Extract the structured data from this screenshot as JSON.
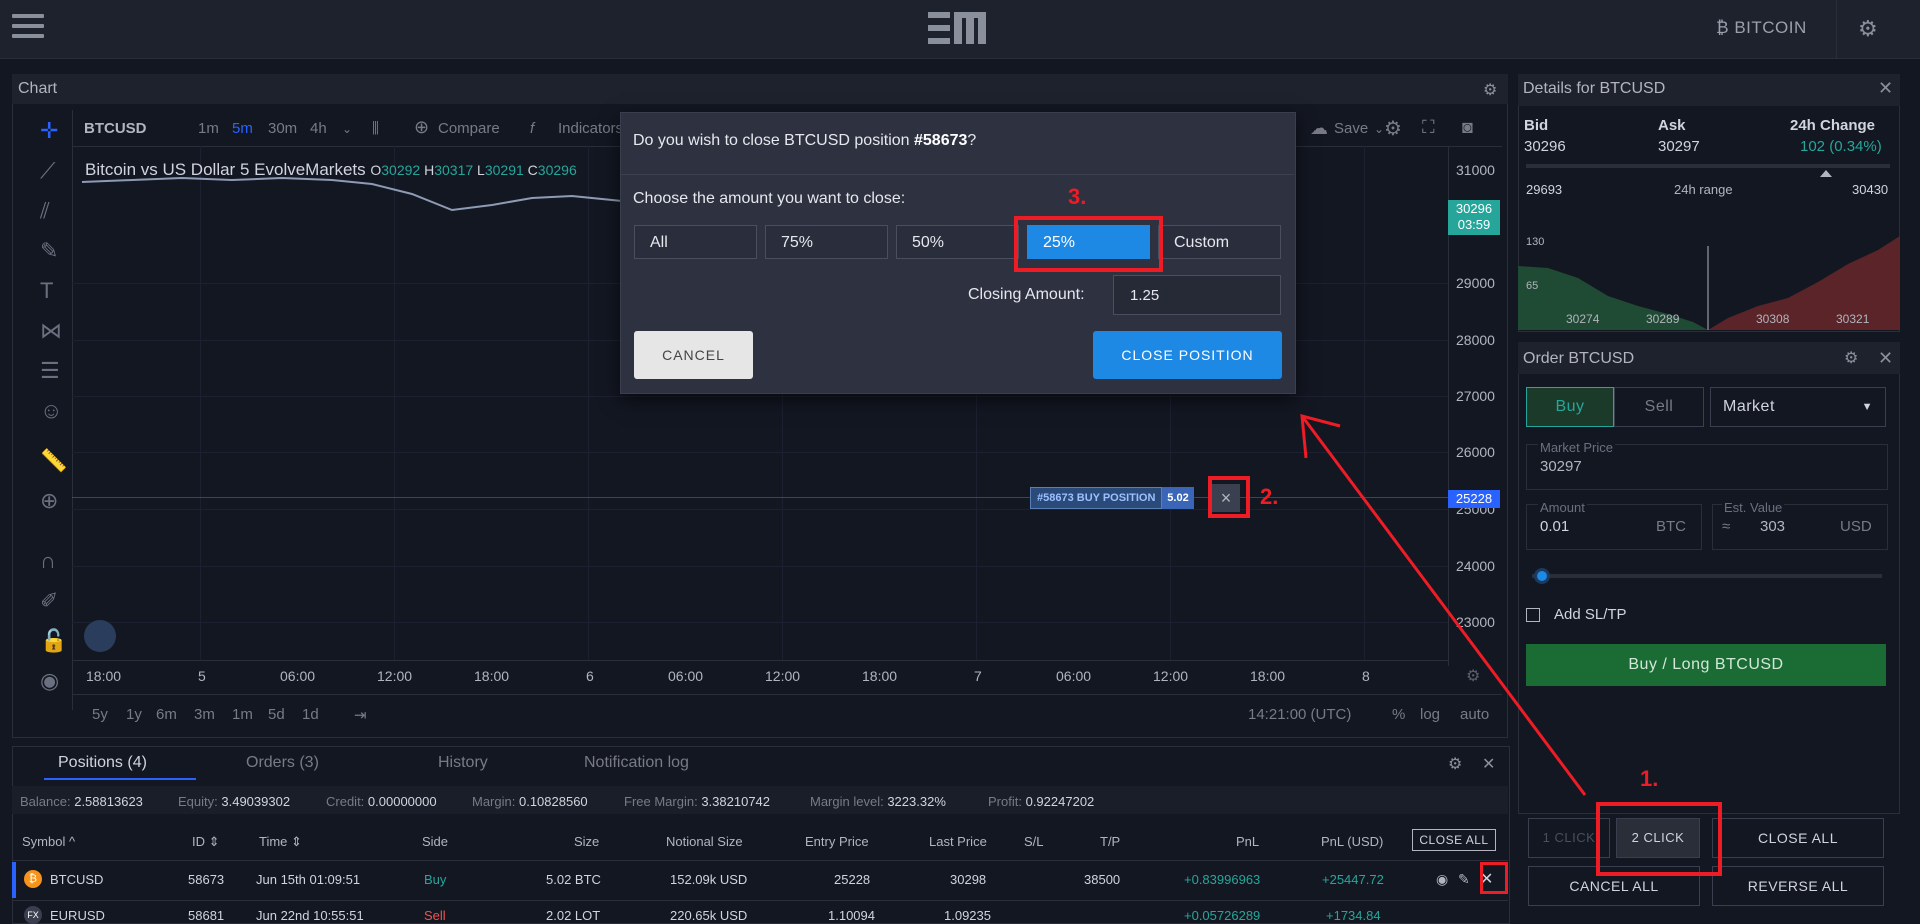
{
  "topbar": {
    "brand_name": "BITCOIN"
  },
  "icons": {
    "menu": "hamburger-icon",
    "logo": "evolve-markets-logo",
    "bitcoin": "bitcoin-icon",
    "settings": "gear-icon",
    "close": "close-icon"
  },
  "colors": {
    "accent_blue": "#1e88e5",
    "buy_green": "#26a69a",
    "annotation_red": "#ee1c25",
    "background": "#131722"
  },
  "chart": {
    "title": "Chart",
    "toolbar": {
      "symbol": "BTCUSD",
      "intervals": [
        "1m",
        "5m",
        "30m",
        "4h"
      ],
      "selected_interval": "5m",
      "compare": "Compare",
      "indicators": "Indicators",
      "save": "Save"
    },
    "legend": {
      "name": "Bitcoin vs US Dollar",
      "interval": "5",
      "source": "EvolveMarkets",
      "o_label": "O",
      "o": "30292",
      "h_label": "H",
      "h": "30317",
      "l_label": "L",
      "l": "30291",
      "c_label": "C",
      "c": "30296"
    },
    "y_ticks": [
      "31000",
      "29000",
      "28000",
      "27000",
      "26000",
      "25000",
      "24000",
      "23000"
    ],
    "x_ticks": [
      "18:00",
      "5",
      "06:00",
      "12:00",
      "18:00",
      "6",
      "06:00",
      "12:00",
      "18:00",
      "7",
      "06:00",
      "12:00",
      "18:00",
      "8"
    ],
    "current_price": "30296",
    "countdown": "03:59",
    "position_price": "25228",
    "position_tag": "#58673 BUY POSITION",
    "position_size": "5.02",
    "range_buttons": [
      "5y",
      "1y",
      "6m",
      "3m",
      "1m",
      "5d",
      "1d"
    ],
    "time": "14:21:00 (UTC)",
    "scale_buttons": [
      "%",
      "log",
      "auto"
    ]
  },
  "modal": {
    "title_prefix": "Do you wish to close BTCUSD position ",
    "position_id": "#58673",
    "title_suffix": "?",
    "choose_label": "Choose the amount you want to close:",
    "options": [
      "All",
      "75%",
      "50%",
      "25%",
      "Custom"
    ],
    "selected_option": "25%",
    "closing_amount_label": "Closing Amount:",
    "closing_amount": "1.25",
    "cancel_label": "CANCEL",
    "confirm_label": "CLOSE POSITION"
  },
  "annotations": {
    "step1": "1.",
    "step2": "2.",
    "step3": "3."
  },
  "details": {
    "title": "Details for BTCUSD",
    "bid_label": "Bid",
    "bid": "30296",
    "ask_label": "Ask",
    "ask": "30297",
    "change_label": "24h Change",
    "change": "102 (0.34%)",
    "range_low": "29693",
    "range_label": "24h range",
    "range_high": "30430",
    "depth_y": [
      "130",
      "65"
    ],
    "depth_x": [
      "30274",
      "30289",
      "30308",
      "30321"
    ]
  },
  "order": {
    "title": "Order BTCUSD",
    "buy_tab": "Buy",
    "sell_tab": "Sell",
    "order_type": "Market",
    "market_price_label": "Market Price",
    "market_price": "30297",
    "amount_label": "Amount",
    "amount": "0.01",
    "amount_unit": "BTC",
    "est_value_label": "Est. Value",
    "est_prefix": "≈",
    "est_value": "303",
    "est_unit": "USD",
    "add_sltp": "Add SL/TP",
    "submit": "Buy / Long BTCUSD"
  },
  "quick_actions": {
    "one_click": "1 CLICK",
    "two_click": "2 CLICK",
    "close_all": "CLOSE ALL",
    "cancel_all": "CANCEL ALL",
    "reverse_all": "REVERSE ALL"
  },
  "bottom": {
    "tabs": [
      "Positions (4)",
      "Orders (3)",
      "History",
      "Notification log"
    ],
    "summary": [
      {
        "label": "Balance:",
        "value": "2.58813623"
      },
      {
        "label": "Equity:",
        "value": "3.49039302"
      },
      {
        "label": "Credit:",
        "value": "0.00000000"
      },
      {
        "label": "Margin:",
        "value": "0.10828560"
      },
      {
        "label": "Free Margin:",
        "value": "3.38210742"
      },
      {
        "label": "Margin level:",
        "value": "3223.32%"
      },
      {
        "label": "Profit:",
        "value": "0.92247202"
      }
    ],
    "columns": [
      "Symbol",
      "ID",
      "Time",
      "Side",
      "Size",
      "Notional Size",
      "Entry Price",
      "Last Price",
      "S/L",
      "T/P",
      "PnL",
      "PnL (USD)"
    ],
    "close_all_btn": "CLOSE ALL",
    "rows": [
      {
        "symbol": "BTCUSD",
        "id": "58673",
        "time": "Jun 15th 01:09:51",
        "side": "Buy",
        "size": "5.02 BTC",
        "notional": "152.09k USD",
        "entry": "25228",
        "last": "30298",
        "sl": "",
        "tp": "38500",
        "pnl": "+0.83996963",
        "pnl_usd": "+25447.72"
      },
      {
        "symbol": "EURUSD",
        "id": "58681",
        "time": "Jun 22nd 10:55:51",
        "side": "Sell",
        "size": "2.02 LOT",
        "notional": "220.65k USD",
        "entry": "1.10094",
        "last": "1.09235",
        "sl": "",
        "tp": "",
        "pnl": "+0.05726289",
        "pnl_usd": "+1734.84"
      }
    ]
  }
}
